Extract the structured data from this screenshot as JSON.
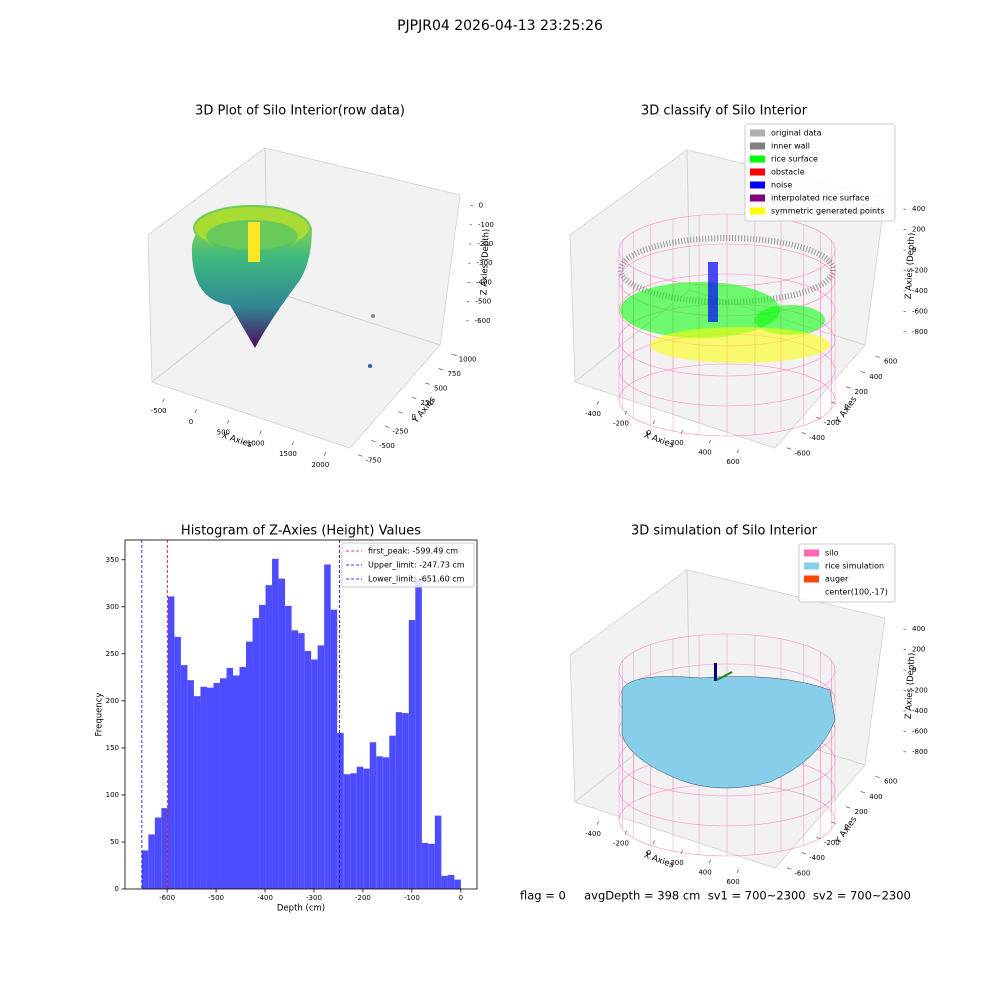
{
  "title": "PJPJR04 2026-04-13 23:25:26",
  "footer": "flag = 0     avgDepth = 398 cm  sv1 = 700~2300  sv2 = 700~2300",
  "chart_data": [
    {
      "type": "scatter3d",
      "title": "3D Plot of Silo Interior(row data)",
      "xlabel": "X Axies",
      "ylabel": "Y Axies",
      "zlabel": "Z Axies (Depth)",
      "xlim": [
        -650,
        2150
      ],
      "xticks": [
        -500,
        0,
        500,
        1000,
        1500,
        2000
      ],
      "ylim": [
        -850,
        1100
      ],
      "yticks": [
        -750,
        -500,
        -250,
        0,
        250,
        500,
        750,
        1000
      ],
      "zlim": [
        -700,
        50
      ],
      "zticks": [
        -600,
        -500,
        -400,
        -300,
        -200,
        -100,
        0
      ]
    },
    {
      "type": "scatter3d",
      "title": "3D classify of Silo Interior",
      "xlabel": "X Axies",
      "ylabel": "Y Axies",
      "zlabel": "Z Axies (Depth)",
      "xlim": [
        -500,
        700
      ],
      "xticks": [
        -400,
        -200,
        0,
        200,
        400,
        600
      ],
      "ylim": [
        -700,
        700
      ],
      "yticks": [
        -600,
        -400,
        -200,
        0,
        200,
        400,
        600
      ],
      "zlim": [
        -900,
        500
      ],
      "zticks": [
        -800,
        -600,
        -400,
        -200,
        0,
        200,
        400
      ],
      "series": [
        {
          "name": "original data",
          "color": "#b0b0b0"
        },
        {
          "name": "inner wall",
          "color": "#808080"
        },
        {
          "name": "rice surface",
          "color": "#00ff00"
        },
        {
          "name": "obstacle",
          "color": "#ff0000"
        },
        {
          "name": "noise",
          "color": "#0000ff"
        },
        {
          "name": "interpolated rice surface",
          "color": "#800080"
        },
        {
          "name": "symmetric generated points",
          "color": "#ffff00"
        }
      ]
    },
    {
      "type": "histogram",
      "title": "Histogram of Z-Axies (Height) Values",
      "xlabel": "Depth (cm)",
      "ylabel": "Frequency",
      "color": "#4d4dff",
      "bins": [
        -651.6,
        -638.3,
        -625.0,
        -611.7,
        -598.4,
        -585.1,
        -571.8,
        -558.5,
        -545.2,
        -531.9,
        -518.6,
        -505.3,
        -492.0,
        -478.7,
        -465.4,
        -452.1,
        -438.8,
        -425.5,
        -412.2,
        -398.9,
        -385.6,
        -372.3,
        -359.0,
        -345.7,
        -332.4,
        -319.1,
        -305.8,
        -292.5,
        -279.2,
        -265.9,
        -252.6,
        -239.3,
        -226.0,
        -212.7,
        -199.4,
        -186.1,
        -172.8,
        -159.5,
        -146.2,
        -132.9,
        -119.6,
        -106.3,
        -93.0,
        -79.7,
        -66.4,
        -53.1,
        -39.8,
        -26.5,
        -13.2,
        0.1
      ],
      "values": [
        41,
        58,
        76,
        86,
        311,
        268,
        238,
        222,
        205,
        215,
        214,
        219,
        224,
        235,
        227,
        236,
        263,
        288,
        302,
        323,
        351,
        330,
        301,
        275,
        272,
        253,
        244,
        259,
        345,
        297,
        166,
        122,
        123,
        130,
        128,
        156,
        141,
        140,
        163,
        188,
        187,
        286,
        329,
        49,
        48,
        78,
        14,
        15,
        10
      ],
      "xlim": [
        -686,
        33
      ],
      "xticks": [
        -600,
        -500,
        -400,
        -300,
        -200,
        -100,
        0
      ],
      "ylim": [
        0,
        371
      ],
      "yticks": [
        0,
        50,
        100,
        150,
        200,
        250,
        300,
        350
      ],
      "lines": [
        {
          "name": "first_peak: -599.49 cm",
          "value": -599.49,
          "color": "#ff0000"
        },
        {
          "name": "Upper_limit: -247.73 cm",
          "value": -247.73,
          "color": "#0000ff"
        },
        {
          "name": "Lower_limit: -651.60 cm",
          "value": -651.6,
          "color": "#0000ff"
        }
      ]
    },
    {
      "type": "surface3d",
      "title": "3D simulation of Silo Interior",
      "xlabel": "X Axies",
      "ylabel": "Y Axies",
      "zlabel": "Z Axies (Depth)",
      "xlim": [
        -500,
        700
      ],
      "xticks": [
        -400,
        -200,
        0,
        200,
        400,
        600
      ],
      "ylim": [
        -700,
        700
      ],
      "yticks": [
        -600,
        -400,
        -200,
        0,
        200,
        400,
        600
      ],
      "zlim": [
        -900,
        500
      ],
      "zticks": [
        -800,
        -600,
        -400,
        -200,
        0,
        200,
        400
      ],
      "series": [
        {
          "name": "silo",
          "color": "#ff69b4"
        },
        {
          "name": "rice simulation",
          "color": "#87ceeb"
        },
        {
          "name": "auger",
          "color": "#ff4500"
        },
        {
          "name": "center(100,-17)",
          "color": null
        }
      ]
    }
  ]
}
